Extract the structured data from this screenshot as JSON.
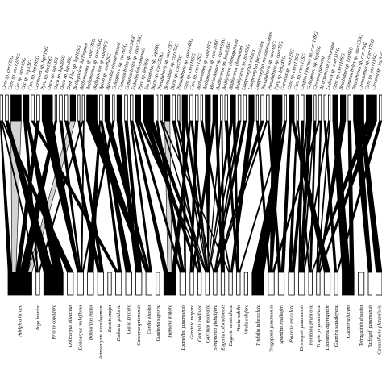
{
  "top_labels": [
    "Curc sp. curr3SG",
    "Curc sp. curr24SG",
    "Cec sp. cecr1SG",
    "Cec sp. lep1SG",
    "Curc sp. lep18SG",
    "Carmenta sp. lep11SG",
    "Pyra sp. fes19SG",
    "Oeco sp. lep1SG",
    "Oeco sp. lep20SG",
    "Oeco sp. lep18SG",
    "Dipt. Elac sp. lep18SG",
    "Bathyporion darlingtoni",
    "Anthonomus sp. curr13SG",
    "Anthonomus sp. curr13SG",
    "Bathyporion sp. curr8SG",
    "Apion sp. anth2SG",
    "Apionidae zimmermanni",
    "Coleoptera sp. curr6SG",
    "Conotrachelus sp. curr24SG",
    "Conotrachelus sp. curr13SG",
    "Eubulus fulvosquamis",
    "Pyra sp. lep5SG",
    "Eurytomidae sp. lep9SG",
    "Baris sp. curr25SG",
    "Pseudobaris sp. curr7SG",
    "Bonsalarus sp. curr7SG",
    "Baris sp. curr7SG",
    "Pseudobaris sp. curr14SG",
    "Curc sp. curr16SG",
    "Curc sp. curr12SG",
    "Anthonomus sp. curr4SG",
    "Anthonomus sp. curr20SG",
    "Merkodesma sp. curr19SG",
    "Amblyceros sp. bru55SG",
    "Amblyceros chamapoiana",
    "Amblyceros championi",
    "Amblyceros sp. bru6SG",
    "Lamprostylus coluca",
    "Lamprostylus forsanistus",
    "Lamprostylus mesomexicanus",
    "Pseudobaris sp. curr6SG",
    "Pseudobaris sp. curr7SG",
    "Pyra sp. lep24SG",
    "Geraeus sp. curr2SG",
    "Curc sp. curr13SG",
    "Curc sp. curr15SG",
    "Cryptorhynchus sp. curr19SG",
    "Coleoptera sp. lep9SG",
    "Cleopha jumonia",
    "Atractomerus calcaratus",
    "Ludovix sp. curr11SG",
    "Curc sp. curr10SG",
    "Bruchidae sp. bru9SG",
    "Conotrachelus sp. curr15SG",
    "Piazorhinus sp. curr7SG",
    "Cratosomus sp. curr17SG",
    "Curc sp. curr11SG",
    "Cleopha sp. lep3SG"
  ],
  "bottom_labels": [
    "Adelphia hiraea",
    "Inga laurina",
    "Prioria copaifera",
    "Dolicarpus olivaceus",
    "Dolicarpus multiflorus",
    "Dolicarpus major",
    "Astrocaryum standleyanum",
    "Bactris major",
    "Zuelania guidonia",
    "Lealia procera",
    "Casearia guianensis",
    "Cordia bicolor",
    "Guatteria superba",
    "Hamelia triflora",
    "Lacmellea panamensis",
    "Garcinia mapora",
    "Garcinia madruno",
    "Garcinia recondita",
    "Symphonia globulifera",
    "Eugenia coloradoensis",
    "Eugenia oerstediana",
    "Virola nobilis",
    "Virola sebifera",
    "Trichilia tuberculata",
    "Tragopanis panamensis",
    "Spondias radlkoferi",
    "Pouteria reticulata",
    "Desmopsis panamensis",
    "Pombalia prunifolia",
    "Trapterys goudotiana",
    "Lacistema aggregatum",
    "Guapira standleyana",
    "Guatteria lucens",
    "Tetragastris discolor",
    "Tachigali panamensis",
    "Cavanillesia platanifolia"
  ],
  "colors": {
    "ink": "#000000",
    "link_fill": "#d3d3d3",
    "background": "#ffffff"
  }
}
